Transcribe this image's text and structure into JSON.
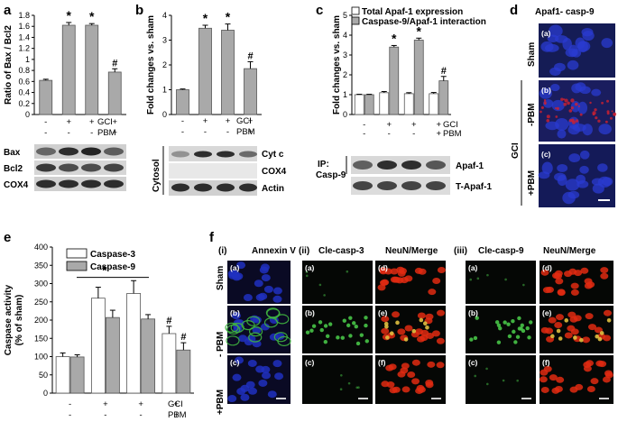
{
  "panels": {
    "a": "a",
    "b": "b",
    "c": "c",
    "d": "d",
    "e": "e",
    "f": "f"
  },
  "symbols": {
    "sig": "*",
    "hash": "#",
    "plus": "+",
    "minus": "-"
  },
  "rows": {
    "gci": "GCI",
    "pbm": "PBM"
  },
  "chart_data": [
    {
      "id": "a",
      "type": "bar",
      "ylabel": "Ratio of Bax / Bcl2",
      "ylim": [
        0,
        1.8
      ],
      "yticks": [
        "0",
        "0.2",
        "0.4",
        "0.6",
        "0.8",
        "1",
        "1.2",
        "1.4",
        "1.6",
        "1.8"
      ],
      "categories": [
        "Sham",
        "GCI",
        "GCI",
        "GCI+PBM"
      ],
      "values": [
        0.62,
        1.62,
        1.62,
        0.77
      ],
      "errors": [
        0.02,
        0.05,
        0.03,
        0.06
      ],
      "marks": [
        "",
        "*",
        "*",
        "#"
      ],
      "gci": [
        "-",
        "+",
        "+",
        "+"
      ],
      "pbm": [
        "-",
        "-",
        "-",
        "+"
      ],
      "blot_labels": [
        "Bax",
        "Bcl2",
        "COX4"
      ]
    },
    {
      "id": "b",
      "type": "bar",
      "ylabel": "Fold changes vs. sham",
      "ylim": [
        0,
        4
      ],
      "yticks": [
        "0",
        "1",
        "2",
        "3",
        "4"
      ],
      "categories": [
        "Sham",
        "GCI",
        "GCI",
        "GCI+PBM"
      ],
      "values": [
        1.0,
        3.48,
        3.4,
        1.85
      ],
      "errors": [
        0.03,
        0.12,
        0.25,
        0.28
      ],
      "marks": [
        "",
        "*",
        "*",
        "#"
      ],
      "gci": [
        "-",
        "+",
        "+",
        "+"
      ],
      "pbm": [
        "-",
        "-",
        "-",
        "+"
      ],
      "blot_labels": [
        "Cyt c",
        "COX4",
        "Actin"
      ],
      "fraction_label": "Cytosol"
    },
    {
      "id": "c",
      "type": "bar",
      "ylabel": "Fold changes vs. sham",
      "ylim": [
        0,
        5
      ],
      "yticks": [
        "0",
        "1",
        "2",
        "3",
        "4",
        "5"
      ],
      "categories": [
        "Sham",
        "GCI",
        "GCI",
        "GCI+PBM"
      ],
      "series": [
        {
          "name": "Total Apaf-1 expression",
          "values": [
            1.0,
            1.1,
            1.05,
            1.05
          ],
          "errors": [
            0.02,
            0.06,
            0.05,
            0.06
          ],
          "color": "#ffffff"
        },
        {
          "name": "Caspase-9/Apaf-1 interaction",
          "values": [
            1.0,
            3.4,
            3.75,
            1.7
          ],
          "errors": [
            0.02,
            0.08,
            0.1,
            0.22
          ],
          "color": "#a9a9a9"
        }
      ],
      "marks": [
        "",
        "*",
        "*",
        "#"
      ],
      "gci": [
        "-",
        "+",
        "+",
        "+"
      ],
      "pbm": [
        "-",
        "-",
        "-",
        "+"
      ],
      "ip_label": "IP:",
      "ip_target": "Casp-9",
      "blot_labels": [
        "Apaf-1",
        "T-Apaf-1"
      ]
    },
    {
      "id": "e",
      "type": "bar",
      "ylabel": "Caspase activity\n(% of sham)",
      "ylim": [
        0,
        400
      ],
      "yticks": [
        "0",
        "50",
        "100",
        "150",
        "200",
        "250",
        "300",
        "350",
        "400"
      ],
      "categories": [
        "Sham",
        "GCI",
        "GCI",
        "GCI+PBM"
      ],
      "series": [
        {
          "name": "Caspase-3",
          "values": [
            100,
            260,
            273,
            163
          ],
          "errors": [
            10,
            30,
            35,
            20
          ],
          "color": "#ffffff"
        },
        {
          "name": "Caspase-9",
          "values": [
            99,
            207,
            203,
            118
          ],
          "errors": [
            6,
            20,
            12,
            20
          ],
          "color": "#a9a9a9"
        }
      ],
      "marks_series1": [
        "",
        "",
        "",
        "#"
      ],
      "marks_series2": [
        "",
        "",
        "",
        "#"
      ],
      "group_mark": "*",
      "gci": [
        "-",
        "+",
        "+",
        "+"
      ],
      "pbm": [
        "-",
        "-",
        "-",
        "+"
      ]
    }
  ],
  "panel_d": {
    "title": "Apaf1- casp-9",
    "group_label": "GCI",
    "rows": [
      {
        "tag": "(a)",
        "label": "Sham"
      },
      {
        "tag": "(b)",
        "label": "-PBM"
      },
      {
        "tag": "(c)",
        "label": "+PBM"
      }
    ]
  },
  "panel_f": {
    "sections": [
      {
        "roman": "(i)",
        "cols": [
          "Annexin V"
        ]
      },
      {
        "roman": "(ii)",
        "cols": [
          "Cle-casp-3",
          "NeuN/Merge"
        ]
      },
      {
        "roman": "(iii)",
        "cols": [
          "Cle-casp-9",
          "NeuN/Merge"
        ]
      }
    ],
    "row_labels": [
      "Sham",
      "- PBM",
      "+PBM"
    ],
    "tags_single": [
      "(a)",
      "(b)",
      "(c)"
    ],
    "tags_left": [
      "(a)",
      "(b)",
      "(c)"
    ],
    "tags_right": [
      "(d)",
      "(e)",
      "(f)"
    ]
  },
  "colors": {
    "bar_gray": "#a9a9a9",
    "bar_white": "#ffffff",
    "dapi_blue": "#1a2fb0",
    "neun_red": "#d0200f",
    "green": "#3aa63a"
  }
}
